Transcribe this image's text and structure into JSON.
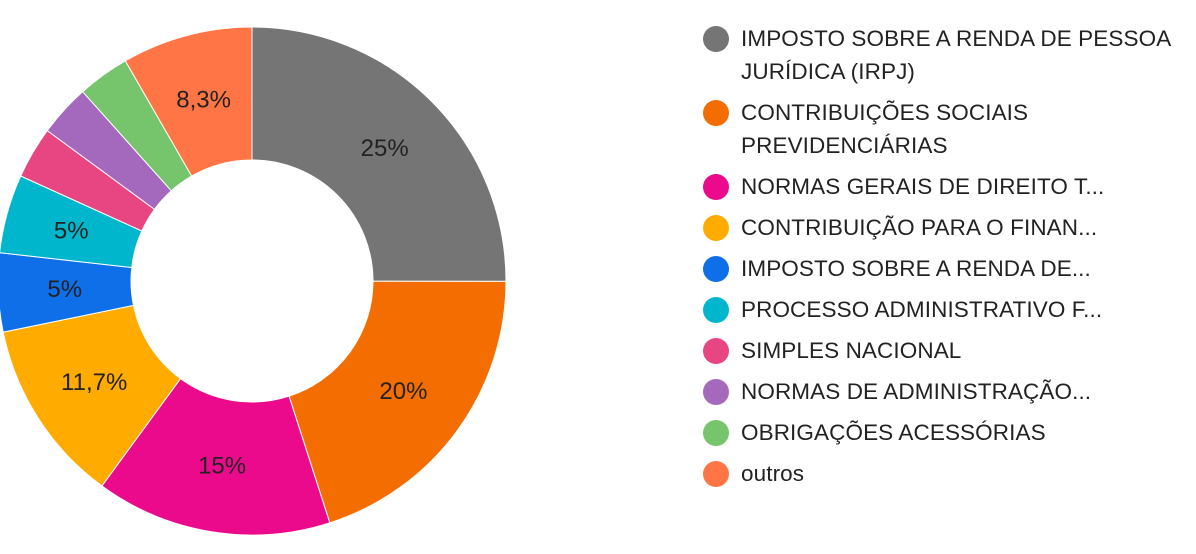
{
  "chart_data": {
    "type": "pie",
    "donut": true,
    "title": "",
    "legend_position": "right",
    "slices": [
      {
        "label": "IMPOSTO SOBRE A RENDA DE PESSOA JURÍDICA (IRPJ)",
        "value": 25,
        "display": "25%",
        "color": "#757575"
      },
      {
        "label": "CONTRIBUIÇÕES SOCIAIS PREVIDENCIÁRIAS",
        "value": 20,
        "display": "20%",
        "color": "#f46d00"
      },
      {
        "label": "NORMAS GERAIS DE DIREITO T...",
        "value": 15,
        "display": "15%",
        "color": "#ec0a8c"
      },
      {
        "label": "CONTRIBUIÇÃO PARA O FINAN...",
        "value": 11.7,
        "display": "11,7%",
        "color": "#ffab00"
      },
      {
        "label": "IMPOSTO SOBRE A RENDA DE...",
        "value": 5,
        "display": "5%",
        "color": "#0f6fe8"
      },
      {
        "label": "PROCESSO ADMINISTRATIVO F...",
        "value": 5,
        "display": "5%",
        "color": "#00b6cc"
      },
      {
        "label": "SIMPLES NACIONAL",
        "value": 3.3,
        "display": "",
        "color": "#e84682"
      },
      {
        "label": "NORMAS DE ADMINISTRAÇÃO...",
        "value": 3.3,
        "display": "",
        "color": "#a468bc"
      },
      {
        "label": "OBRIGAÇÕES ACESSÓRIAS",
        "value": 3.3,
        "display": "",
        "color": "#76c46b"
      },
      {
        "label": "outros",
        "value": 8.3,
        "display": "8,3%",
        "color": "#ff7545"
      }
    ]
  }
}
